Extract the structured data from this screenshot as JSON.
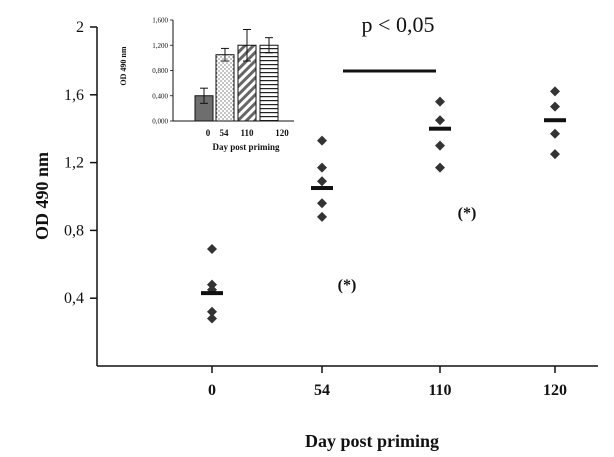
{
  "chart_data": [
    {
      "type": "scatter",
      "xlabel": "Day post priming",
      "ylabel": "OD 490 nm",
      "categories": [
        "0",
        "54",
        "110",
        "120"
      ],
      "yticks": [
        "0,4",
        "0,8",
        "1,2",
        "1,6",
        "2"
      ],
      "ytick_values": [
        0.4,
        0.8,
        1.2,
        1.6,
        2.0
      ],
      "ylim": [
        0,
        2
      ],
      "series": [
        {
          "values": [
            [
              0.69,
              0.48,
              0.45,
              0.32,
              0.28
            ],
            [
              1.33,
              1.17,
              1.09,
              0.96,
              0.88
            ],
            [
              1.56,
              1.45,
              1.3,
              1.17
            ],
            [
              1.62,
              1.53,
              1.37,
              1.25
            ]
          ],
          "means": [
            0.43,
            1.05,
            1.4,
            1.45
          ]
        }
      ],
      "annotations": [
        {
          "text": "(*)",
          "category": "54"
        },
        {
          "text": "(*)",
          "category": "110"
        },
        {
          "text": "p < 0,05",
          "from": "54",
          "to": "110"
        }
      ],
      "grid": false
    },
    {
      "type": "bar",
      "xlabel": "Day post priming",
      "ylabel": "OD 490 nm",
      "categories": [
        "0",
        "54",
        "110",
        "120"
      ],
      "values": [
        0.4,
        1.05,
        1.2,
        1.2
      ],
      "errors": [
        0.12,
        0.1,
        0.25,
        0.12
      ],
      "yticks": [
        "0,000",
        "0,400",
        "0,800",
        "1,200",
        "1,600"
      ],
      "ytick_values": [
        0,
        0.4,
        0.8,
        1.2,
        1.6
      ],
      "ylim": [
        0,
        1.6
      ],
      "bar_fills": [
        "solid-gray",
        "dots",
        "diagonal-stripes",
        "horizontal-stripes"
      ],
      "colors": {
        "solid": "#6e6e6e",
        "stroke": "#111111"
      }
    }
  ]
}
